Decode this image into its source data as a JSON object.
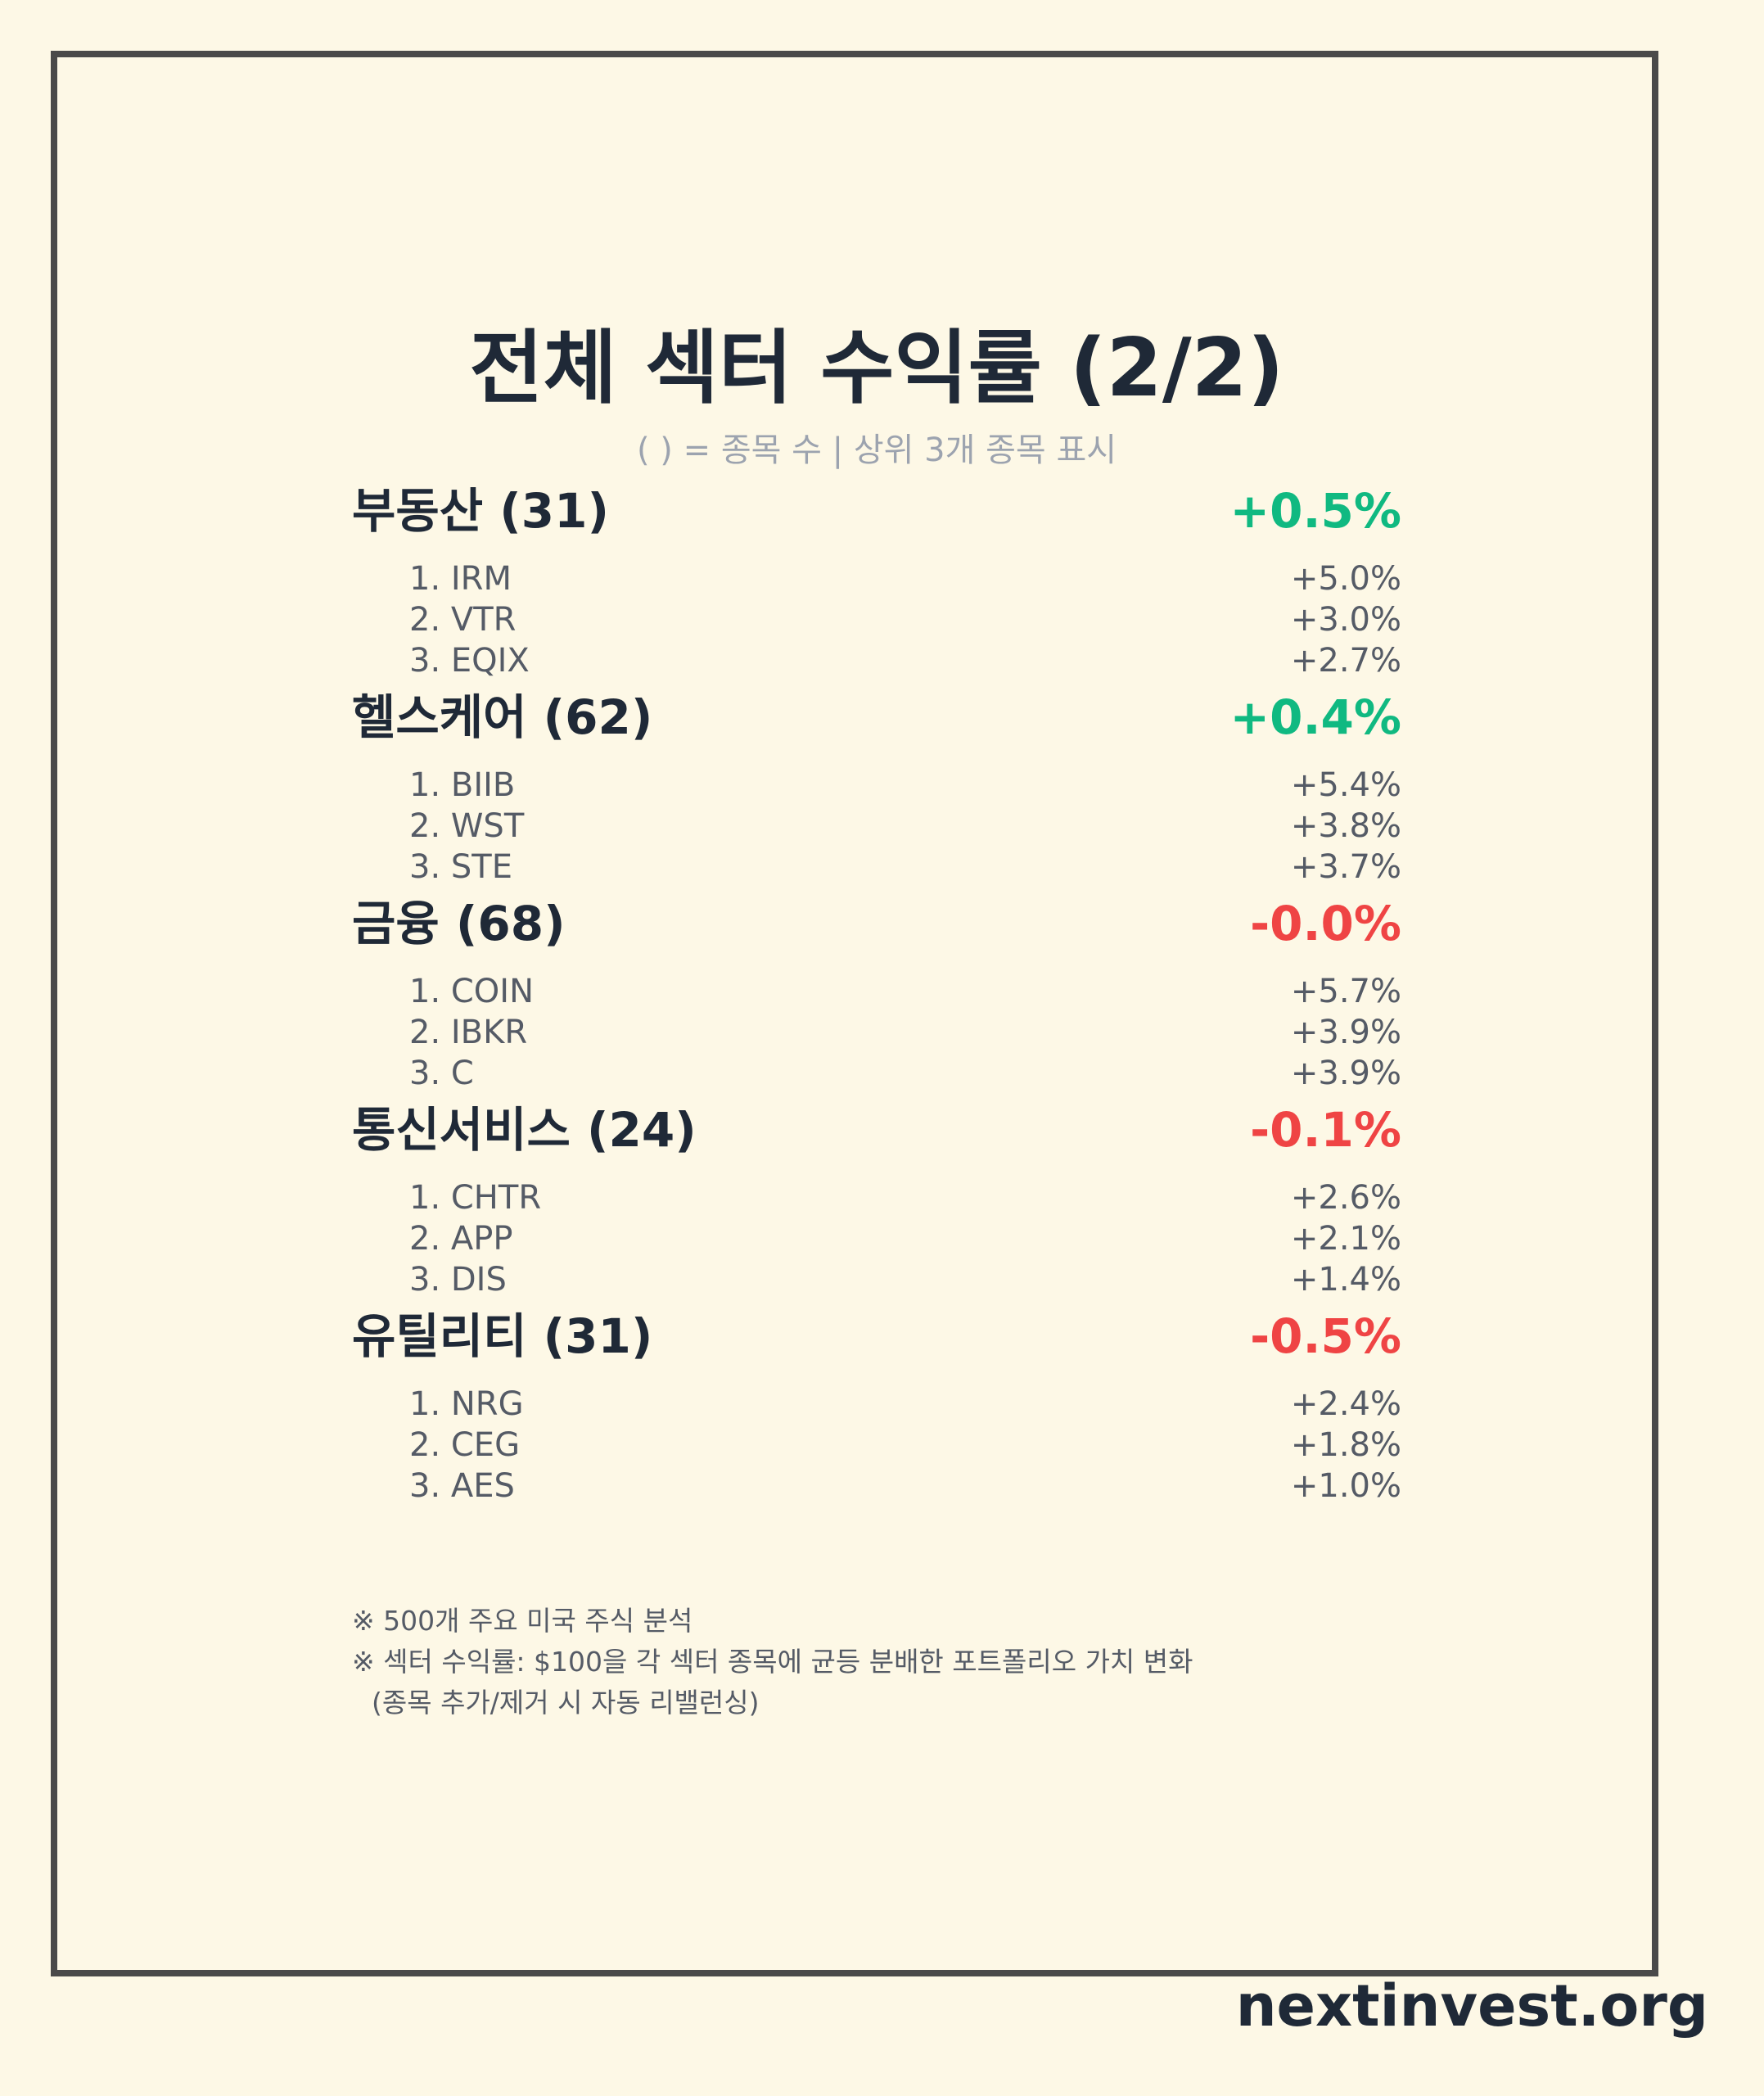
{
  "header": {
    "title": "전체 섹터 수익률 (2/2)",
    "subtitle": "( ) = 종목 수 | 상위 3개 종목 표시"
  },
  "colors": {
    "positive": "#10b981",
    "negative": "#ef4444",
    "background": "#fdf8e6",
    "frame": "#4a4a4a"
  },
  "sectors": [
    {
      "name": "부동산 (31)",
      "return": "+0.5%",
      "direction": "positive",
      "stocks": [
        {
          "label": "1. IRM",
          "return": "+5.0%"
        },
        {
          "label": "2. VTR",
          "return": "+3.0%"
        },
        {
          "label": "3. EQIX",
          "return": "+2.7%"
        }
      ]
    },
    {
      "name": "헬스케어 (62)",
      "return": "+0.4%",
      "direction": "positive",
      "stocks": [
        {
          "label": "1. BIIB",
          "return": "+5.4%"
        },
        {
          "label": "2. WST",
          "return": "+3.8%"
        },
        {
          "label": "3. STE",
          "return": "+3.7%"
        }
      ]
    },
    {
      "name": "금융 (68)",
      "return": "-0.0%",
      "direction": "negative",
      "stocks": [
        {
          "label": "1. COIN",
          "return": "+5.7%"
        },
        {
          "label": "2. IBKR",
          "return": "+3.9%"
        },
        {
          "label": "3. C",
          "return": "+3.9%"
        }
      ]
    },
    {
      "name": "통신서비스 (24)",
      "return": "-0.1%",
      "direction": "negative",
      "stocks": [
        {
          "label": "1. CHTR",
          "return": "+2.6%"
        },
        {
          "label": "2. APP",
          "return": "+2.1%"
        },
        {
          "label": "3. DIS",
          "return": "+1.4%"
        }
      ]
    },
    {
      "name": "유틸리티 (31)",
      "return": "-0.5%",
      "direction": "negative",
      "stocks": [
        {
          "label": "1. NRG",
          "return": "+2.4%"
        },
        {
          "label": "2. CEG",
          "return": "+1.8%"
        },
        {
          "label": "3. AES",
          "return": "+1.0%"
        }
      ]
    }
  ],
  "notes": {
    "line1": "※ 500개 주요 미국 주식 분석",
    "line2": "※ 섹터 수익률: $100을 각 섹터 종목에 균등 분배한 포트폴리오 가치 변화",
    "line3": "(종목 추가/제거 시 자동 리밸런싱)"
  },
  "brand": "nextinvest.org"
}
